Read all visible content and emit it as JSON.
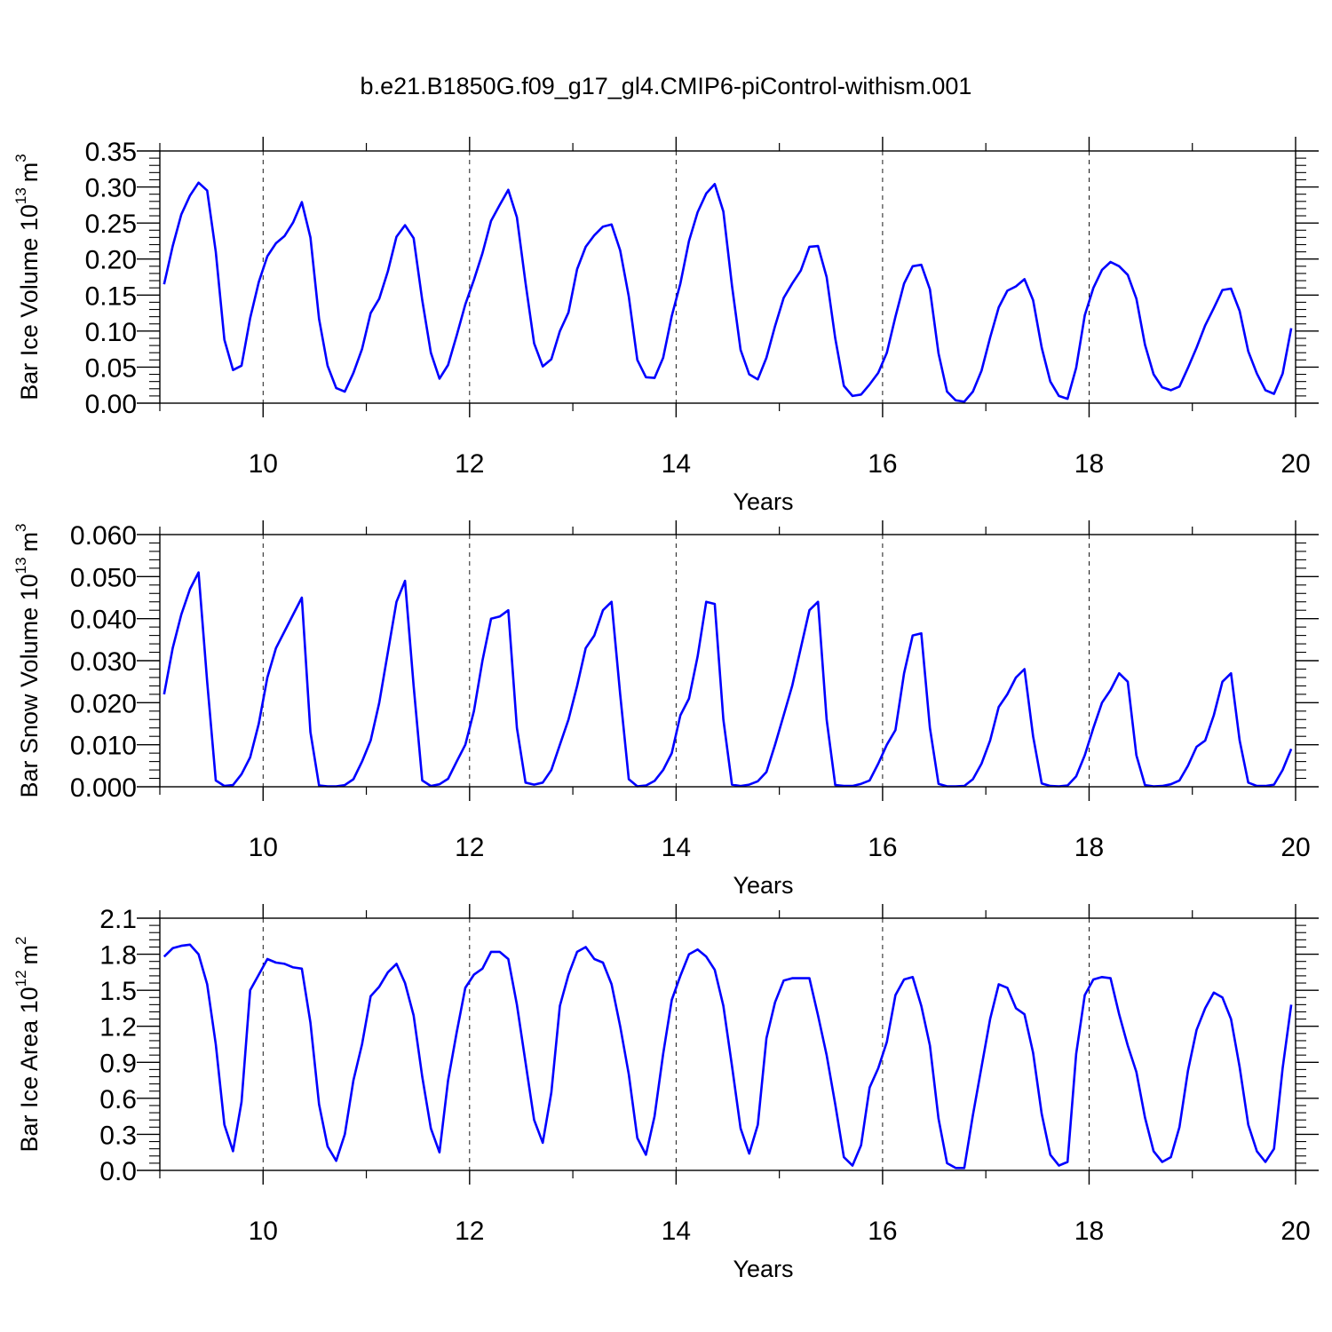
{
  "title": "b.e21.B1850G.f09_g17_gl4.CMIP6-piControl-withism.001",
  "colors": {
    "series": "#0000ff",
    "axis": "#000000",
    "grid": "#000000"
  },
  "chart_data": [
    {
      "type": "line",
      "ylabel": "Bar Ice Volume 10",
      "ylabel_exp": "13",
      "ylabel_unit": "m",
      "ylabel_unit_exp": "3",
      "xlabel": "Years",
      "xlim": [
        9,
        20
      ],
      "ylim": [
        0,
        0.35
      ],
      "x_ticks": [
        "10",
        "12",
        "14",
        "16",
        "18",
        "20"
      ],
      "y_ticks": [
        "0.00",
        "0.05",
        "0.10",
        "0.15",
        "0.20",
        "0.25",
        "0.30",
        "0.35"
      ],
      "grid": "vertical dashed at major x ticks",
      "series": [
        {
          "x_start": 9.0417,
          "x_step": 0.08333,
          "values": [
            0.165,
            0.218,
            0.262,
            0.288,
            0.306,
            0.295,
            0.21,
            0.088,
            0.046,
            0.052,
            0.118,
            0.168,
            0.204,
            0.222,
            0.232,
            0.251,
            0.279,
            0.23,
            0.117,
            0.052,
            0.021,
            0.016,
            0.042,
            0.075,
            0.125,
            0.145,
            0.183,
            0.231,
            0.247,
            0.229,
            0.143,
            0.07,
            0.034,
            0.053,
            0.094,
            0.137,
            0.171,
            0.208,
            0.253,
            0.275,
            0.296,
            0.258,
            0.167,
            0.083,
            0.051,
            0.061,
            0.1,
            0.126,
            0.186,
            0.217,
            0.233,
            0.245,
            0.248,
            0.212,
            0.148,
            0.06,
            0.036,
            0.035,
            0.063,
            0.121,
            0.166,
            0.225,
            0.265,
            0.291,
            0.304,
            0.266,
            0.163,
            0.074,
            0.04,
            0.033,
            0.063,
            0.107,
            0.146,
            0.166,
            0.184,
            0.217,
            0.218,
            0.175,
            0.09,
            0.024,
            0.01,
            0.012,
            0.026,
            0.042,
            0.07,
            0.12,
            0.166,
            0.19,
            0.192,
            0.158,
            0.069,
            0.016,
            0.004,
            0.002,
            0.016,
            0.045,
            0.091,
            0.133,
            0.156,
            0.162,
            0.172,
            0.143,
            0.077,
            0.03,
            0.01,
            0.006,
            0.049,
            0.122,
            0.16,
            0.185,
            0.196,
            0.19,
            0.178,
            0.145,
            0.081,
            0.04,
            0.022,
            0.018,
            0.023,
            0.049,
            0.077,
            0.108,
            0.132,
            0.157,
            0.159,
            0.128,
            0.072,
            0.041,
            0.018,
            0.013,
            0.041,
            0.104
          ]
        }
      ]
    },
    {
      "type": "line",
      "ylabel": "Bar Snow Volume 10",
      "ylabel_exp": "13",
      "ylabel_unit": "m",
      "ylabel_unit_exp": "3",
      "xlabel": "Years",
      "xlim": [
        9,
        20
      ],
      "ylim": [
        0,
        0.06
      ],
      "x_ticks": [
        "10",
        "12",
        "14",
        "16",
        "18",
        "20"
      ],
      "y_ticks": [
        "0.000",
        "0.010",
        "0.020",
        "0.030",
        "0.040",
        "0.050",
        "0.060"
      ],
      "grid": "vertical dashed at major x ticks",
      "series": [
        {
          "x_start": 9.0417,
          "x_step": 0.08333,
          "values": [
            0.022,
            0.033,
            0.041,
            0.047,
            0.051,
            0.025,
            0.0015,
            0.0002,
            0.0004,
            0.003,
            0.007,
            0.015,
            0.026,
            0.033,
            0.037,
            0.041,
            0.045,
            0.013,
            0.0003,
            0.0001,
            0.0001,
            0.0004,
            0.0018,
            0.006,
            0.011,
            0.02,
            0.032,
            0.044,
            0.049,
            0.024,
            0.0015,
            0.0002,
            0.0006,
            0.0019,
            0.006,
            0.01,
            0.018,
            0.03,
            0.04,
            0.0405,
            0.042,
            0.014,
            0.001,
            0.0005,
            0.001,
            0.004,
            0.01,
            0.016,
            0.024,
            0.033,
            0.036,
            0.042,
            0.044,
            0.022,
            0.0018,
            0.0001,
            0.0003,
            0.0014,
            0.004,
            0.008,
            0.017,
            0.021,
            0.031,
            0.044,
            0.0435,
            0.016,
            0.0005,
            0.0002,
            0.0005,
            0.0013,
            0.0035,
            0.01,
            0.017,
            0.024,
            0.033,
            0.042,
            0.044,
            0.016,
            0.0004,
            0.0002,
            0.0002,
            0.0007,
            0.0015,
            0.0055,
            0.01,
            0.0135,
            0.027,
            0.036,
            0.0365,
            0.014,
            0.0007,
            0.0001,
            0.0001,
            0.0002,
            0.0018,
            0.0055,
            0.011,
            0.019,
            0.022,
            0.026,
            0.028,
            0.012,
            0.0008,
            0.0002,
            0.0001,
            0.0003,
            0.0025,
            0.0075,
            0.014,
            0.02,
            0.023,
            0.027,
            0.025,
            0.0075,
            0.0004,
            0.0001,
            0.0002,
            0.0006,
            0.0015,
            0.005,
            0.0095,
            0.011,
            0.017,
            0.025,
            0.027,
            0.011,
            0.001,
            0.0002,
            0.0002,
            0.0005,
            0.004,
            0.009
          ]
        }
      ]
    },
    {
      "type": "line",
      "ylabel": "Bar Ice Area 10",
      "ylabel_exp": "12",
      "ylabel_unit": "m",
      "ylabel_unit_exp": "2",
      "xlabel": "Years",
      "xlim": [
        9,
        20
      ],
      "ylim": [
        0,
        2.1
      ],
      "x_ticks": [
        "10",
        "12",
        "14",
        "16",
        "18",
        "20"
      ],
      "y_ticks": [
        "0.0",
        "0.3",
        "0.6",
        "0.9",
        "1.2",
        "1.5",
        "1.8",
        "2.1"
      ],
      "grid": "vertical dashed at major x ticks",
      "series": [
        {
          "x_start": 9.0417,
          "x_step": 0.08333,
          "values": [
            1.78,
            1.85,
            1.87,
            1.88,
            1.8,
            1.55,
            1.05,
            0.38,
            0.16,
            0.57,
            1.5,
            1.63,
            1.76,
            1.73,
            1.72,
            1.69,
            1.68,
            1.23,
            0.55,
            0.2,
            0.08,
            0.3,
            0.75,
            1.05,
            1.45,
            1.53,
            1.65,
            1.72,
            1.56,
            1.29,
            0.78,
            0.35,
            0.15,
            0.75,
            1.15,
            1.52,
            1.63,
            1.68,
            1.82,
            1.82,
            1.76,
            1.38,
            0.9,
            0.42,
            0.23,
            0.65,
            1.37,
            1.63,
            1.82,
            1.86,
            1.76,
            1.73,
            1.55,
            1.2,
            0.8,
            0.27,
            0.13,
            0.45,
            0.97,
            1.42,
            1.62,
            1.8,
            1.84,
            1.78,
            1.67,
            1.37,
            0.87,
            0.35,
            0.14,
            0.38,
            1.1,
            1.4,
            1.58,
            1.6,
            1.6,
            1.6,
            1.29,
            0.96,
            0.55,
            0.11,
            0.04,
            0.21,
            0.69,
            0.85,
            1.07,
            1.46,
            1.59,
            1.61,
            1.37,
            1.04,
            0.43,
            0.06,
            0.02,
            0.02,
            0.46,
            0.86,
            1.26,
            1.55,
            1.52,
            1.35,
            1.3,
            0.98,
            0.47,
            0.13,
            0.04,
            0.07,
            0.97,
            1.46,
            1.59,
            1.61,
            1.6,
            1.3,
            1.04,
            0.82,
            0.44,
            0.16,
            0.07,
            0.11,
            0.36,
            0.83,
            1.17,
            1.35,
            1.48,
            1.44,
            1.26,
            0.86,
            0.38,
            0.16,
            0.07,
            0.18,
            0.85,
            1.38
          ]
        }
      ]
    }
  ]
}
